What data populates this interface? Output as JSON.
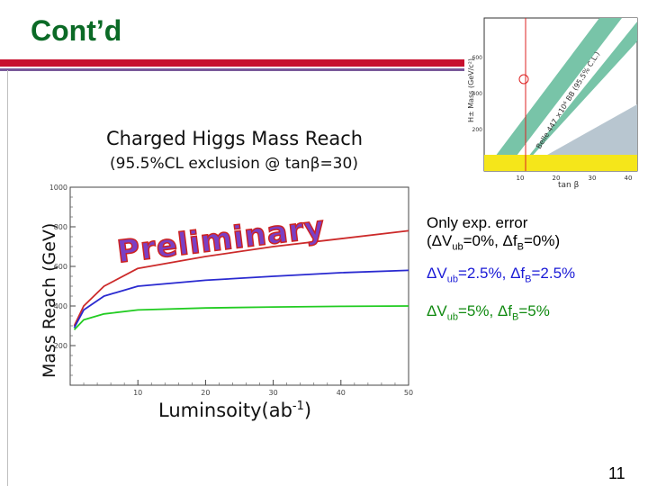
{
  "slide": {
    "title": "Cont’d",
    "page_number": "11"
  },
  "main_chart": {
    "title": "Charged Higgs Mass Reach",
    "subtitle_prefix": "(95.5%CL exclusion @ tan",
    "subtitle_beta": "β",
    "subtitle_suffix": "=30)",
    "ylabel": "Mass Reach (GeV)",
    "xlabel_main": "Luminsoity(ab",
    "xlabel_sup": "-1",
    "xlabel_tail": ")",
    "watermark": "Preliminary",
    "colors": {
      "red": "#cc2a2a",
      "blue": "#2a2ad0",
      "green": "#22cc22",
      "watermark_fill": "#7b3fc4",
      "watermark_stroke": "#cc2222"
    }
  },
  "chart_data": {
    "type": "line",
    "x_ticks": [
      "10",
      "20",
      "30",
      "40",
      "50"
    ],
    "y_ticks": [
      "200",
      "400",
      "600",
      "800",
      "1000"
    ],
    "xlim": [
      0,
      50
    ],
    "ylim": [
      0,
      1000
    ],
    "grid": false,
    "series": [
      {
        "color": "#cc2a2a",
        "x": [
          0.6,
          2,
          5,
          10,
          20,
          30,
          40,
          50
        ],
        "y": [
          300,
          400,
          500,
          590,
          650,
          700,
          740,
          780
        ]
      },
      {
        "color": "#2a2ad0",
        "x": [
          0.6,
          2,
          5,
          10,
          20,
          30,
          40,
          50
        ],
        "y": [
          290,
          380,
          450,
          500,
          530,
          550,
          568,
          580
        ]
      },
      {
        "color": "#22cc22",
        "x": [
          0.6,
          2,
          5,
          10,
          20,
          30,
          40,
          50
        ],
        "y": [
          280,
          330,
          360,
          380,
          390,
          395,
          398,
          400
        ]
      }
    ]
  },
  "legend_notes": {
    "only_exp": {
      "line1": "Only exp. error",
      "l2_open": "(ΔV",
      "l2_sub1": "ub",
      "l2_mid": "=0%, Δf",
      "l2_sub2": "B",
      "l2_close": "=0%)"
    },
    "blue_note": {
      "a": "ΔV",
      "sub1": "ub",
      "b": "=2.5%, Δf",
      "sub2": "B",
      "c": "=2.5%"
    },
    "green_note": {
      "a": "ΔV",
      "sub1": "ub",
      "b": "=5%, Δf",
      "sub2": "B",
      "c": "=5%"
    },
    "colors": {
      "black": "#000000",
      "blue": "#1a1ad6",
      "green": "#118a11"
    }
  },
  "inset_plot": {
    "ylabel": "H± Mass (GeV/c²)",
    "xlabel": "tan β",
    "x_ticks": [
      "10",
      "20",
      "30",
      "40"
    ],
    "y_ticks": [
      "200",
      "400",
      "600"
    ],
    "band_label": "Belle 447 ×10⁶ BB (95.5% C.L.)",
    "colors": {
      "green": "#78c4a8",
      "gray": "#b8c6d0",
      "yellow": "#f5e61a",
      "marker": "#d22"
    }
  }
}
